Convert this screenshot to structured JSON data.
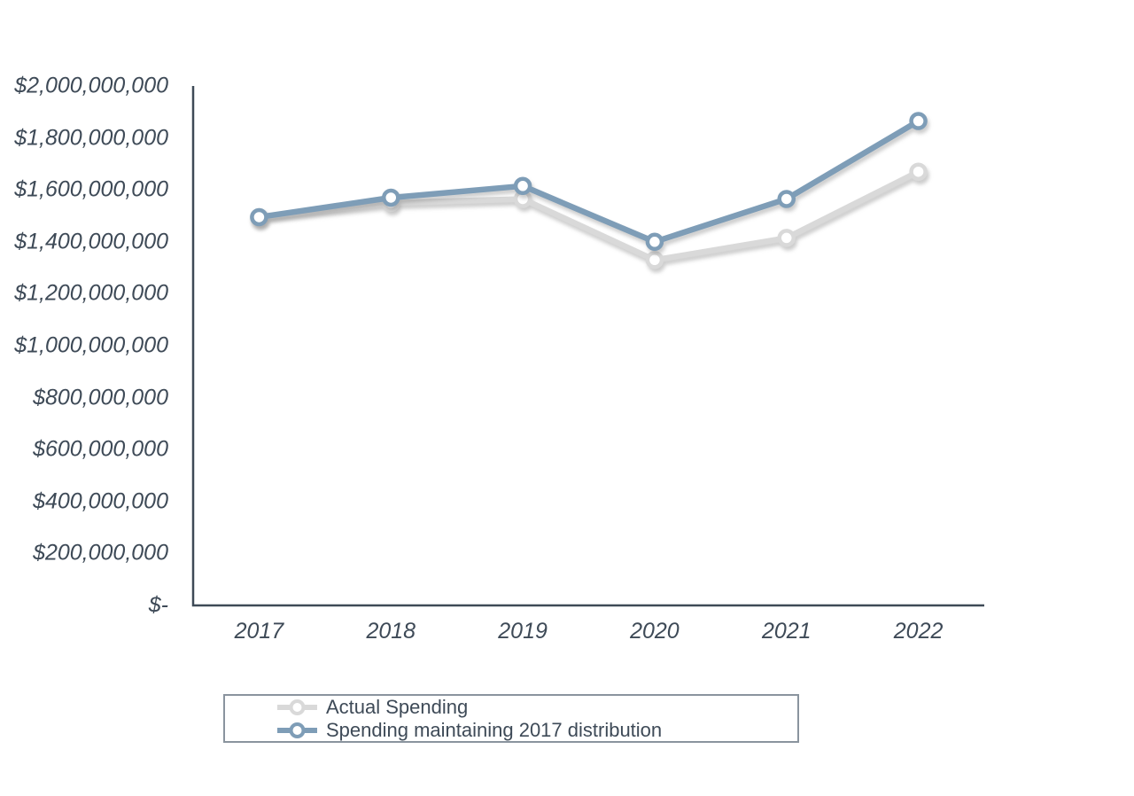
{
  "chart_data": {
    "type": "line",
    "title": "",
    "xlabel": "",
    "ylabel": "",
    "grid": false,
    "legend_position": "bottom",
    "marker": "open-circle",
    "categories": [
      "2017",
      "2018",
      "2019",
      "2020",
      "2021",
      "2022"
    ],
    "series": [
      {
        "name": "Actual Spending",
        "color": "#d9d9d9",
        "values": [
          1495000000,
          1550000000,
          1565000000,
          1330000000,
          1415000000,
          1670000000
        ]
      },
      {
        "name": "Spending maintaining 2017 distribution",
        "color": "#7e9db7",
        "values": [
          1495000000,
          1570000000,
          1615000000,
          1400000000,
          1565000000,
          1865000000
        ]
      }
    ],
    "ylim": [
      0,
      2000000000
    ],
    "y_tick_step": 200000000,
    "y_tick_labels": [
      "$-",
      "$200,000,000",
      "$400,000,000",
      "$600,000,000",
      "$800,000,000",
      "$1,000,000,000",
      "$1,200,000,000",
      "$1,400,000,000",
      "$1,600,000,000",
      "$1,800,000,000",
      "$2,000,000,000"
    ]
  },
  "colors": {
    "axis": "#3e4a57",
    "tick_text": "#3e4a57",
    "legend_text": "#3e4a57",
    "legend_border": "#8a949e",
    "background": "#ffffff",
    "marker_fill": "#ffffff"
  }
}
